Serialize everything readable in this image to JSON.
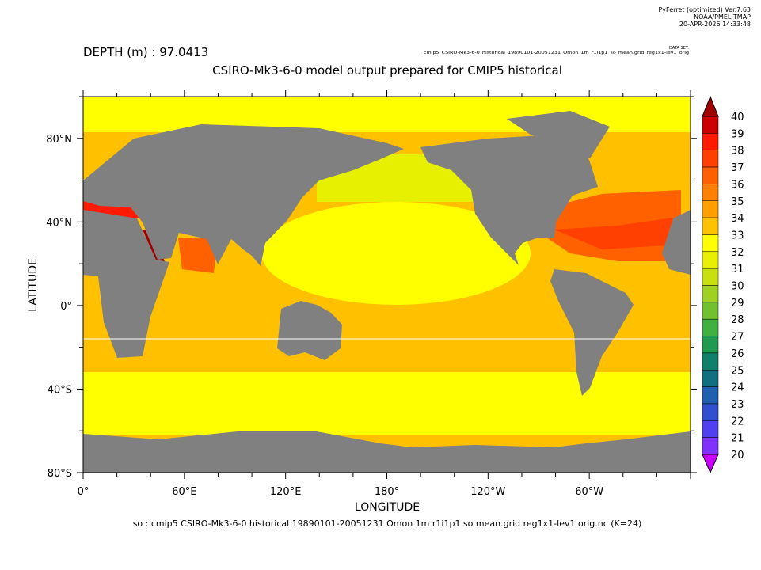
{
  "header": {
    "software": "PyFerret (optimized) Ver.7.63",
    "org": "NOAA/PMEL TMAP",
    "timestamp": "20-APR-2026 14:33:48"
  },
  "dataset_label": "DATA SET:",
  "dataset": "cmip5_CSIRO-Mk3-6-0_historical_19890101-20051231_Omon_1m_r1i1p1_so_mean.grid_reg1x1-lev1_orig",
  "depth": "DEPTH (m) : 97.0413",
  "title": "CSIRO-Mk3-6-0 model output prepared for CMIP5 historical",
  "x_axis": {
    "label": "LONGITUDE",
    "ticks": [
      "0°",
      "60°E",
      "120°E",
      "180°",
      "120°W",
      "60°W"
    ]
  },
  "y_axis": {
    "label": "LATITUDE",
    "ticks": [
      "80°N",
      "40°N",
      "0°",
      "40°S",
      "80°S"
    ]
  },
  "colorbar": {
    "levels": [
      "40",
      "39",
      "38",
      "37",
      "36",
      "35",
      "34",
      "33",
      "32",
      "31",
      "30",
      "29",
      "28",
      "27",
      "26",
      "25",
      "24",
      "23",
      "22",
      "21",
      "20"
    ],
    "over_color": "#a00000",
    "colors": [
      "#cc0000",
      "#ff1a00",
      "#ff4000",
      "#ff6000",
      "#ff8000",
      "#ff9f00",
      "#ffc000",
      "#ffff00",
      "#e6f000",
      "#c8e010",
      "#a0d020",
      "#70c030",
      "#40b040",
      "#209a50",
      "#10806a",
      "#107080",
      "#2060b0",
      "#3050d0",
      "#5040f0",
      "#8030ff"
    ],
    "under_color": "#cc00ff"
  },
  "footer": "so : cmip5 CSIRO-Mk3-6-0 historical 19890101-20051231 Omon 1m r1i1p1 so mean.grid reg1x1-lev1 orig.nc (K=24)"
}
